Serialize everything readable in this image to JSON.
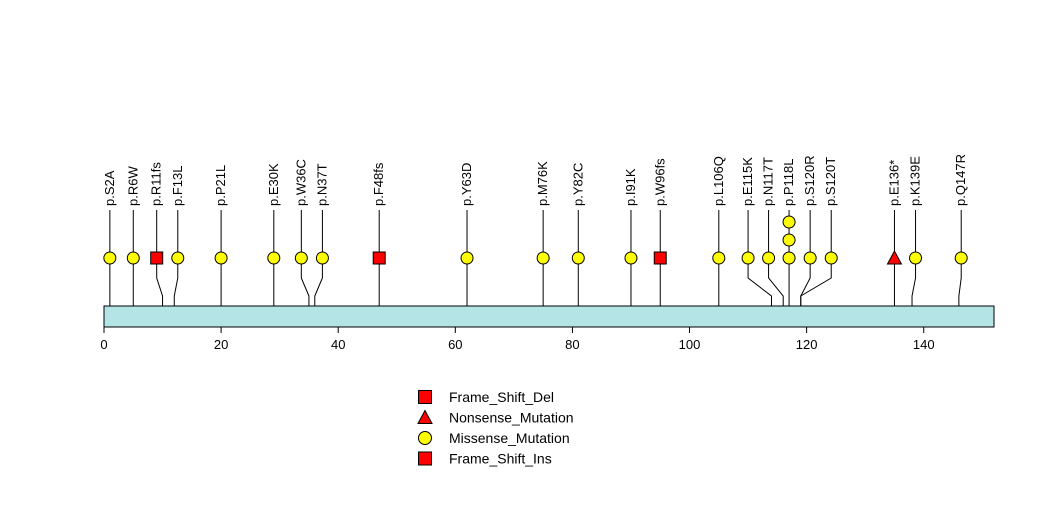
{
  "chart_data": {
    "type": "lollipop",
    "protein_length": 152,
    "x_range": [
      0,
      152
    ],
    "ticks": [
      0,
      20,
      40,
      60,
      80,
      100,
      120,
      140
    ],
    "colors": {
      "domain_fill": "#b4e4e6",
      "missense": "#ffff00",
      "frameshift": "#ff0000",
      "nonsense": "#ff0000"
    },
    "legend": [
      {
        "label": "Frame_Shift_Del",
        "shape": "square",
        "color": "#ff0000"
      },
      {
        "label": "Nonsense_Mutation",
        "shape": "triangle",
        "color": "#ff0000"
      },
      {
        "label": "Missense_Mutation",
        "shape": "circle",
        "color": "#ffff00"
      },
      {
        "label": "Frame_Shift_Ins",
        "shape": "square",
        "color": "#ff0000"
      }
    ],
    "mutations": [
      {
        "label": "p.S2A",
        "position": 1,
        "lane": 1,
        "count": 1,
        "type": "Missense_Mutation"
      },
      {
        "label": "p.R6W",
        "position": 5,
        "lane": 5,
        "count": 1,
        "type": "Missense_Mutation"
      },
      {
        "label": "p.R11fs",
        "position": 10,
        "lane": 9,
        "count": 1,
        "type": "Frame_Shift_Del"
      },
      {
        "label": "p.F13L",
        "position": 12,
        "lane": 12.6,
        "count": 1,
        "type": "Missense_Mutation"
      },
      {
        "label": "p.P21L",
        "position": 20,
        "lane": 20,
        "count": 1,
        "type": "Missense_Mutation"
      },
      {
        "label": "p.E30K",
        "position": 29,
        "lane": 29,
        "count": 1,
        "type": "Missense_Mutation"
      },
      {
        "label": "p.W36C",
        "position": 35,
        "lane": 33.7,
        "count": 1,
        "type": "Missense_Mutation"
      },
      {
        "label": "p.N37T",
        "position": 36,
        "lane": 37.3,
        "count": 1,
        "type": "Missense_Mutation"
      },
      {
        "label": "p.F48fs",
        "position": 47,
        "lane": 47,
        "count": 1,
        "type": "Frame_Shift_Del"
      },
      {
        "label": "p.Y63D",
        "position": 62,
        "lane": 62,
        "count": 1,
        "type": "Missense_Mutation"
      },
      {
        "label": "p.M76K",
        "position": 75,
        "lane": 75,
        "count": 1,
        "type": "Missense_Mutation"
      },
      {
        "label": "p.Y82C",
        "position": 81,
        "lane": 81,
        "count": 1,
        "type": "Missense_Mutation"
      },
      {
        "label": "p.I91K",
        "position": 90,
        "lane": 90,
        "count": 1,
        "type": "Missense_Mutation"
      },
      {
        "label": "p.W96fs",
        "position": 95,
        "lane": 95,
        "count": 1,
        "type": "Frame_Shift_Ins"
      },
      {
        "label": "p.L106Q",
        "position": 105,
        "lane": 105,
        "count": 1,
        "type": "Missense_Mutation"
      },
      {
        "label": "p.E115K",
        "position": 114,
        "lane": 110,
        "count": 1,
        "type": "Missense_Mutation"
      },
      {
        "label": "p.N117T",
        "position": 116,
        "lane": 113.5,
        "count": 1,
        "type": "Missense_Mutation"
      },
      {
        "label": "p.P118L",
        "position": 117,
        "lane": 117,
        "count": 3,
        "type": "Missense_Mutation"
      },
      {
        "label": "p.S120R",
        "position": 119,
        "lane": 120.6,
        "count": 1,
        "type": "Missense_Mutation"
      },
      {
        "label": "p.S120T",
        "position": 119,
        "lane": 124.2,
        "count": 1,
        "type": "Missense_Mutation"
      },
      {
        "label": "p.E136*",
        "position": 135,
        "lane": 135,
        "count": 1,
        "type": "Nonsense_Mutation"
      },
      {
        "label": "p.K139E",
        "position": 138,
        "lane": 138.6,
        "count": 1,
        "type": "Missense_Mutation"
      },
      {
        "label": "p.Q147R",
        "position": 146,
        "lane": 146.4,
        "count": 1,
        "type": "Missense_Mutation"
      }
    ]
  }
}
